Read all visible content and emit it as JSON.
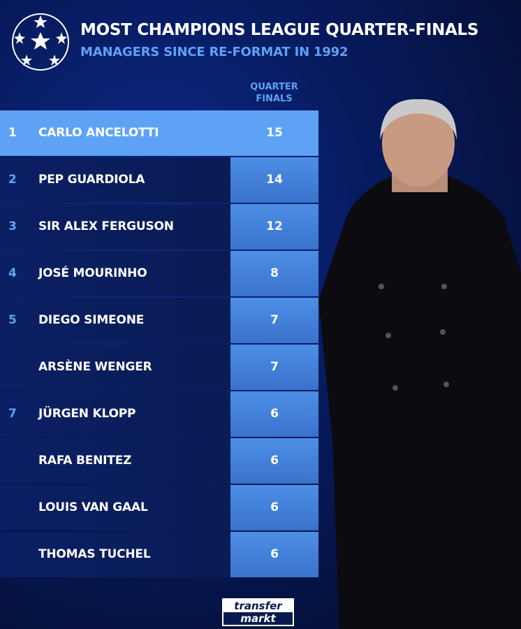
{
  "header": {
    "title": "MOST CHAMPIONS LEAGUE QUARTER-FINALS",
    "subtitle": "MANAGERS SINCE RE-FORMAT IN 1992"
  },
  "table": {
    "column_header_line1": "QUARTER",
    "column_header_line2": "FINALS",
    "rows": [
      {
        "rank": "1",
        "name": "CARLO ANCELOTTI",
        "value": "15"
      },
      {
        "rank": "2",
        "name": "PEP GUARDIOLA",
        "value": "14"
      },
      {
        "rank": "3",
        "name": "SIR ALEX FERGUSON",
        "value": "12"
      },
      {
        "rank": "4",
        "name": "JOSÉ MOURINHO",
        "value": "8"
      },
      {
        "rank": "5",
        "name": "DIEGO SIMEONE",
        "value": "7"
      },
      {
        "rank": "",
        "name": "ARSÈNE WENGER",
        "value": "7"
      },
      {
        "rank": "7",
        "name": "JÜRGEN KLOPP",
        "value": "6"
      },
      {
        "rank": "",
        "name": "RAFA BENITEZ",
        "value": "6"
      },
      {
        "rank": "",
        "name": "LOUIS VAN GAAL",
        "value": "6"
      },
      {
        "rank": "",
        "name": "THOMAS TUCHEL",
        "value": "6"
      }
    ]
  },
  "footer": {
    "logo_line1": "transfer",
    "logo_line2": "markt"
  },
  "colors": {
    "accent": "#5ea2f5",
    "row_bg": "#0b1f64",
    "value_cell": "#4d8fe6"
  }
}
